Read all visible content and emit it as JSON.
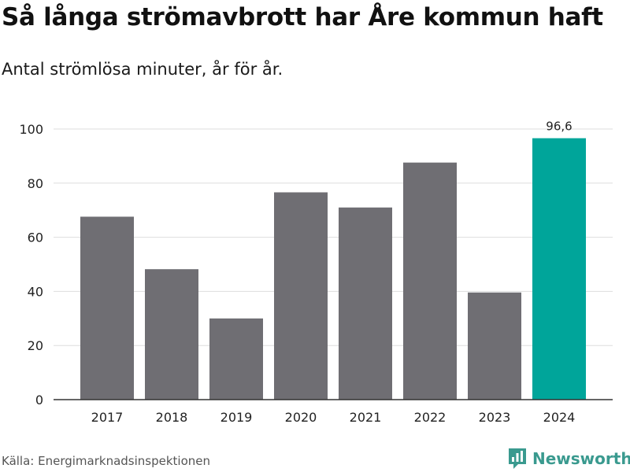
{
  "title": "Så långa strömavbrott har Åre kommun haft",
  "subtitle": "Antal strömlösa minuter, år för år.",
  "source": "Källa: Energimarknadsinspektionen",
  "brand": {
    "name": "Newsworthy",
    "icon": "newsworthy-logo-icon",
    "color": "#3a9a8f"
  },
  "colors": {
    "bar": "#6f6e73",
    "highlight": "#00a59a",
    "grid": "#dddddd",
    "axis": "#333333"
  },
  "chart_data": {
    "type": "bar",
    "title": "Så långa strömavbrott har Åre kommun haft",
    "subtitle": "Antal strömlösa minuter, år för år.",
    "xlabel": "",
    "ylabel": "",
    "categories": [
      "2017",
      "2018",
      "2019",
      "2020",
      "2021",
      "2022",
      "2023",
      "2024"
    ],
    "values": [
      67.6,
      48.2,
      30.0,
      76.6,
      71.0,
      87.6,
      39.6,
      96.6
    ],
    "highlight_index": 7,
    "data_labels": [
      {
        "index": 7,
        "text": "96,6"
      }
    ],
    "ylim": [
      0,
      100
    ],
    "yticks": [
      0,
      20,
      40,
      60,
      80,
      100
    ],
    "grid": true
  }
}
